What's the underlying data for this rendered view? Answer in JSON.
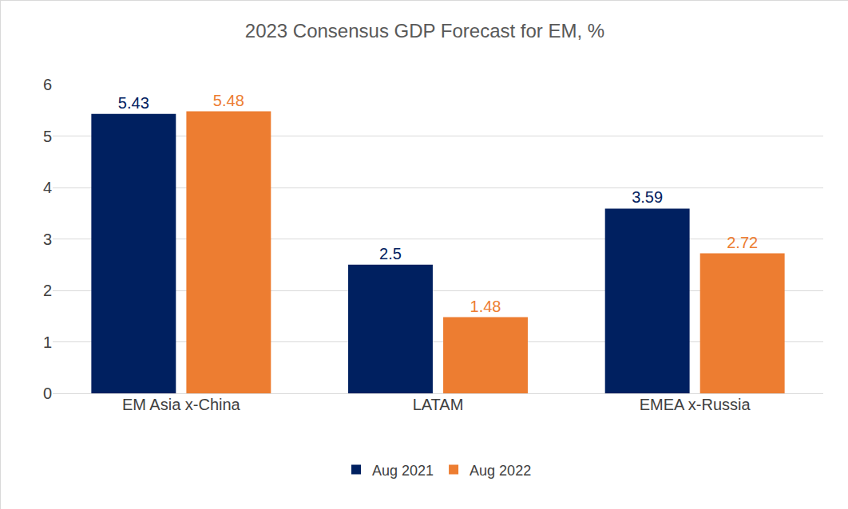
{
  "chart_data": {
    "type": "bar",
    "title": "2023 Consensus GDP Forecast for EM, %",
    "categories": [
      "EM Asia x-China",
      "LATAM",
      "EMEA x-Russia"
    ],
    "series": [
      {
        "name": "Aug 2021",
        "color": "#002060",
        "values": [
          5.43,
          2.5,
          3.59
        ]
      },
      {
        "name": "Aug 2022",
        "color": "#ED7D31",
        "values": [
          5.48,
          1.48,
          2.72
        ]
      }
    ],
    "ylim": [
      0,
      6
    ],
    "yticks": [
      0,
      1,
      2,
      3,
      4,
      5,
      6
    ],
    "grid": true,
    "legend": "bottom",
    "data_labels": true
  }
}
